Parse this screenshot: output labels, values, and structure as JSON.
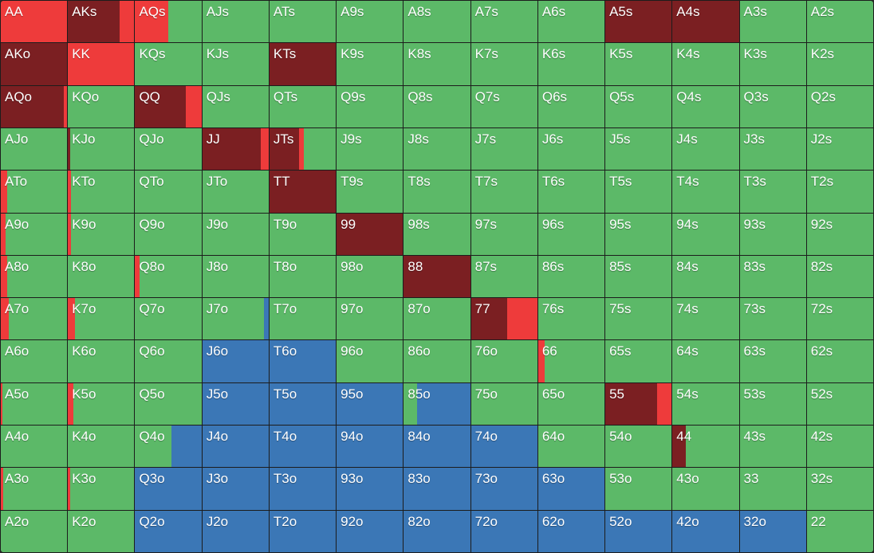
{
  "colors": {
    "raise": "#7b1f22",
    "allin": "#ee3b3b",
    "call": "#5cb968",
    "fold": "#3b77b6"
  },
  "grid": {
    "rows": [
      [
        "AA",
        "AKs",
        "AQs",
        "AJs",
        "ATs",
        "A9s",
        "A8s",
        "A7s",
        "A6s",
        "A5s",
        "A4s",
        "A3s",
        "A2s"
      ],
      [
        "AKo",
        "KK",
        "KQs",
        "KJs",
        "KTs",
        "K9s",
        "K8s",
        "K7s",
        "K6s",
        "K5s",
        "K4s",
        "K3s",
        "K2s"
      ],
      [
        "AQo",
        "KQo",
        "QQ",
        "QJs",
        "QTs",
        "Q9s",
        "Q8s",
        "Q7s",
        "Q6s",
        "Q5s",
        "Q4s",
        "Q3s",
        "Q2s"
      ],
      [
        "AJo",
        "KJo",
        "QJo",
        "JJ",
        "JTs",
        "J9s",
        "J8s",
        "J7s",
        "J6s",
        "J5s",
        "J4s",
        "J3s",
        "J2s"
      ],
      [
        "ATo",
        "KTo",
        "QTo",
        "JTo",
        "TT",
        "T9s",
        "T8s",
        "T7s",
        "T6s",
        "T5s",
        "T4s",
        "T3s",
        "T2s"
      ],
      [
        "A9o",
        "K9o",
        "Q9o",
        "J9o",
        "T9o",
        "99",
        "98s",
        "97s",
        "96s",
        "95s",
        "94s",
        "93s",
        "92s"
      ],
      [
        "A8o",
        "K8o",
        "Q8o",
        "J8o",
        "T8o",
        "98o",
        "88",
        "87s",
        "86s",
        "85s",
        "84s",
        "83s",
        "82s"
      ],
      [
        "A7o",
        "K7o",
        "Q7o",
        "J7o",
        "T7o",
        "97o",
        "87o",
        "77",
        "76s",
        "75s",
        "74s",
        "73s",
        "72s"
      ],
      [
        "A6o",
        "K6o",
        "Q6o",
        "J6o",
        "T6o",
        "96o",
        "86o",
        "76o",
        "66",
        "65s",
        "64s",
        "63s",
        "62s"
      ],
      [
        "A5o",
        "K5o",
        "Q5o",
        "J5o",
        "T5o",
        "95o",
        "85o",
        "75o",
        "65o",
        "55",
        "54s",
        "53s",
        "52s"
      ],
      [
        "A4o",
        "K4o",
        "Q4o",
        "J4o",
        "T4o",
        "94o",
        "84o",
        "74o",
        "64o",
        "54o",
        "44",
        "43s",
        "42s"
      ],
      [
        "A3o",
        "K3o",
        "Q3o",
        "J3o",
        "T3o",
        "93o",
        "83o",
        "73o",
        "63o",
        "53o",
        "43o",
        "33",
        "32s"
      ],
      [
        "A2o",
        "K2o",
        "Q2o",
        "J2o",
        "T2o",
        "92o",
        "82o",
        "72o",
        "62o",
        "52o",
        "42o",
        "32o",
        "22"
      ]
    ],
    "frequencies": {
      "AA": {
        "allin": 1.0
      },
      "AKs": {
        "raise": 0.78,
        "allin": 0.22
      },
      "AQs": {
        "allin": 0.5,
        "call": 0.5
      },
      "A5s": {
        "raise": 1.0
      },
      "A4s": {
        "raise": 1.0
      },
      "AKo": {
        "raise": 1.0
      },
      "KK": {
        "allin": 1.0
      },
      "KTs": {
        "raise": 1.0
      },
      "AQo": {
        "raise": 0.95,
        "allin": 0.05
      },
      "QQ": {
        "raise": 0.76,
        "allin": 0.24
      },
      "JJ": {
        "raise": 0.88,
        "allin": 0.12
      },
      "JTs": {
        "raise": 0.45,
        "allin": 0.07,
        "call": 0.48
      },
      "KJo": {
        "raise": 0.03,
        "call": 0.97
      },
      "TT": {
        "raise": 1.0
      },
      "ATo": {
        "allin": 0.1,
        "call": 0.9
      },
      "KTo": {
        "allin": 0.05,
        "call": 0.95
      },
      "99": {
        "raise": 1.0
      },
      "A9o": {
        "allin": 0.07,
        "call": 0.93
      },
      "K9o": {
        "allin": 0.04,
        "call": 0.96
      },
      "88": {
        "raise": 1.0
      },
      "A8o": {
        "allin": 0.1,
        "call": 0.9
      },
      "Q8o": {
        "allin": 0.07,
        "call": 0.93
      },
      "77": {
        "raise": 0.55,
        "allin": 0.45
      },
      "A7o": {
        "allin": 0.12,
        "call": 0.88
      },
      "K7o": {
        "allin": 0.1,
        "call": 0.9
      },
      "J7o": {
        "call": 0.93,
        "fold": 0.07
      },
      "66": {
        "allin": 0.1,
        "call": 0.9
      },
      "J6o": {
        "fold": 1.0
      },
      "T6o": {
        "fold": 1.0
      },
      "55": {
        "raise": 0.78,
        "allin": 0.22
      },
      "A5o": {
        "allin": 0.03,
        "call": 0.97
      },
      "K5o": {
        "allin": 0.08,
        "call": 0.92
      },
      "J5o": {
        "fold": 1.0
      },
      "T5o": {
        "fold": 1.0
      },
      "95o": {
        "fold": 1.0
      },
      "85o": {
        "call": 0.2,
        "fold": 0.8
      },
      "44": {
        "raise": 0.2,
        "call": 0.8
      },
      "Q4o": {
        "call": 0.55,
        "fold": 0.45
      },
      "J4o": {
        "fold": 1.0
      },
      "T4o": {
        "fold": 1.0
      },
      "94o": {
        "fold": 1.0
      },
      "84o": {
        "fold": 1.0
      },
      "74o": {
        "fold": 1.0
      },
      "A3o": {
        "allin": 0.04,
        "call": 0.96
      },
      "K3o": {
        "allin": 0.03,
        "call": 0.97
      },
      "Q3o": {
        "fold": 1.0
      },
      "J3o": {
        "fold": 1.0
      },
      "T3o": {
        "fold": 1.0
      },
      "93o": {
        "fold": 1.0
      },
      "83o": {
        "fold": 1.0
      },
      "73o": {
        "fold": 1.0
      },
      "63o": {
        "fold": 1.0
      },
      "Q2o": {
        "fold": 1.0
      },
      "J2o": {
        "fold": 1.0
      },
      "T2o": {
        "fold": 1.0
      },
      "92o": {
        "fold": 1.0
      },
      "82o": {
        "fold": 1.0
      },
      "72o": {
        "fold": 1.0
      },
      "62o": {
        "fold": 1.0
      },
      "52o": {
        "fold": 1.0
      },
      "42o": {
        "fold": 1.0
      },
      "32o": {
        "fold": 1.0
      }
    },
    "default_action": "call",
    "action_order": [
      "raise",
      "allin",
      "call",
      "fold"
    ]
  }
}
